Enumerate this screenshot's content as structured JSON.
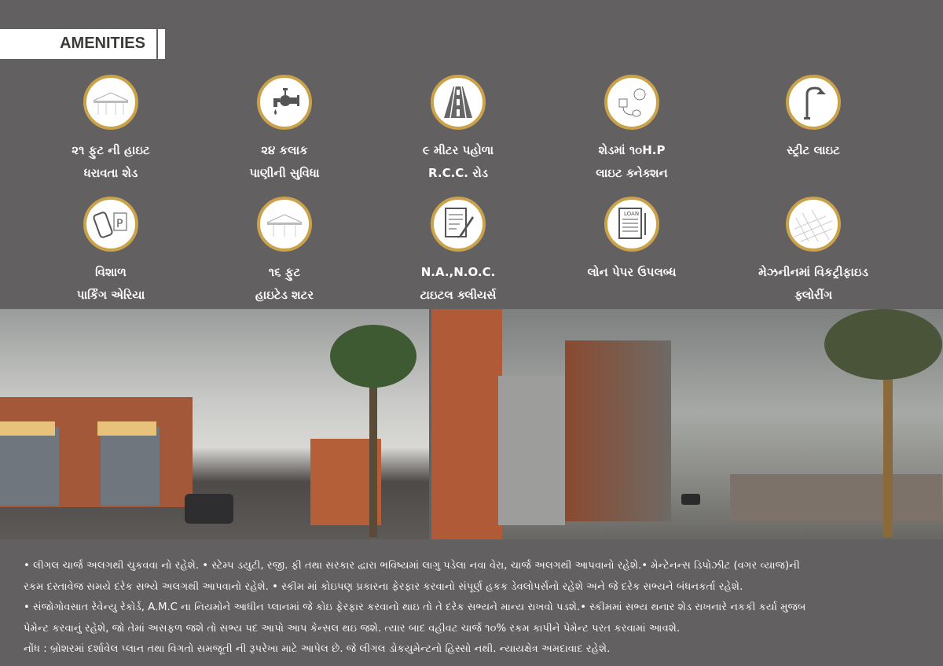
{
  "heading": "AMENITIES",
  "colors": {
    "background": "#626061",
    "ring": "#c9a24a"
  },
  "amenities": [
    {
      "icon": "shed-icon",
      "line1": "૨૧ ફુટ ની હાઇટ",
      "line2": "ધરાવતા શેડ"
    },
    {
      "icon": "water-tap-icon",
      "line1": "૨૪ કલાક",
      "line2": "પાણીની સુવિધા"
    },
    {
      "icon": "road-icon",
      "line1": "૯ મીટર પહોળા",
      "line2": "R.C.C. રોડ"
    },
    {
      "icon": "electric-connection-icon",
      "line1": "શેડમાં ૧૦H.P",
      "line2": "લાઇટ ક્નેક્શન"
    },
    {
      "icon": "street-light-icon",
      "line1": "સ્ટ્રીટ લાઇટ",
      "line2": ""
    },
    {
      "icon": "parking-icon",
      "line1": "વિશાળ",
      "line2": "પાર્કિંગ એરિયા"
    },
    {
      "icon": "shutter-icon",
      "line1": "૧૬ ફુટ",
      "line2": "હાઇટેડ શટર"
    },
    {
      "icon": "document-icon",
      "line1": "N.A.,N.O.C.",
      "line2": "ટાઇટલ ક્લીયર્સ"
    },
    {
      "icon": "loan-paper-icon",
      "line1": "લોન પેપર ઉપલબ્ધ",
      "line2": ""
    },
    {
      "icon": "flooring-icon",
      "line1": "મેઝનીનમાં વિકટ્રીફાઇડ",
      "line2": "ફ્લોરીંગ"
    }
  ],
  "notes": [
    "• લીગલ ચાર્જ અલગથી ચુકવવા નો રહેશે. • સ્ટેમ્પ ડયુટી, રજી. ફી તથા સરકાર દ્વારા ભવિષ્યમાં લાગુ પડેલા નવા વેરા, ચાર્જ અલગથી આપવાનો રહેશે.• મેન્ટેનન્સ ડિપોઝીટ (વગર વ્યાજ)ની",
    "રકમ દસ્તાવેજ સમયે દરેક સભ્યે અલગથી આપવાનો રહેશે. • સ્કીમ માં કોઇપણ પ્રકારના ફેરફાર કરવાનો સંપૂર્ણ હકક ડેવલોપર્સનો રહેશે અને જે દરેક સભ્યને બંધનકર્તા રહેશે.",
    "• સંજોગોવસાત રેવેન્યુ રેકોર્ડ, A.M.C ના નિયમોને આધીન પ્લાનમાં જે કોઇ ફેરફાર કરવાનો થાઇ તો તે દરેક સભ્યને માન્ય રાખવો પડશે.• સ્કીમમાં સભ્ય થનાર શેડ રાખનારે નકકી કર્યા મુજબ",
    "પેમેન્ટ કરવાનું રહેશે, જો તેમાં અસફળ જશે તો સભ્ય પદ આપો આપ કેન્સલ થઇ જશે. ત્યાર બાદ વહીવટ ચાર્જ ૧૦% રકમ કાપીને પેમેન્ટ પરત કરવામાં આવશે.",
    "નોંધ : બ્રોશરમાં દર્શાવેલ પ્લાન તથા વિગતો સમજૂતી ની રૂપરેખા માટે આપેલ છે. જે લીગલ ડોકયુમેન્ટનો હિસ્સો નથી. ન્યાયક્ષેત્ર અમદાવાદ રહેશે."
  ]
}
